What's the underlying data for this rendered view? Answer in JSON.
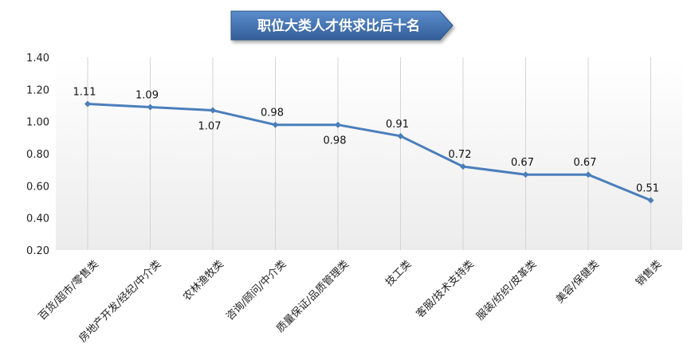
{
  "chart_data": {
    "type": "line",
    "title": "职位大类人才供求比后十名",
    "categories": [
      "百货/超市/零售类",
      "房地产开发/经纪/中介类",
      "农林渔牧类",
      "咨询/顾问/中介类",
      "质量保证/品质管理类",
      "技工类",
      "客服/技术支持类",
      "服装/纺织/皮革类",
      "美容/保健类",
      "销售类"
    ],
    "values": [
      1.11,
      1.09,
      1.07,
      0.98,
      0.98,
      0.91,
      0.72,
      0.67,
      0.67,
      0.51
    ],
    "label_texts": [
      "1.11",
      "1.09",
      "1.07",
      "0.98",
      "0.98",
      "0.91",
      "0.72",
      "0.67",
      "0.67",
      "0.51"
    ],
    "label_positions": [
      "above",
      "above",
      "below",
      "above",
      "below",
      "above",
      "above",
      "above",
      "above",
      "above"
    ],
    "y_ticks": [
      "0.20",
      "0.40",
      "0.60",
      "0.80",
      "1.00",
      "1.20",
      "1.40"
    ],
    "ylim": [
      0.2,
      1.4
    ],
    "xlabel": "",
    "ylabel": "",
    "grid": "vertical",
    "legend": "none",
    "colors": {
      "line": "#4a7ebb",
      "title_box": "#3f6fad",
      "grid": "#d4d4d4",
      "plot_bg_top": "#ffffff",
      "plot_bg_bottom": "#ececec"
    }
  }
}
